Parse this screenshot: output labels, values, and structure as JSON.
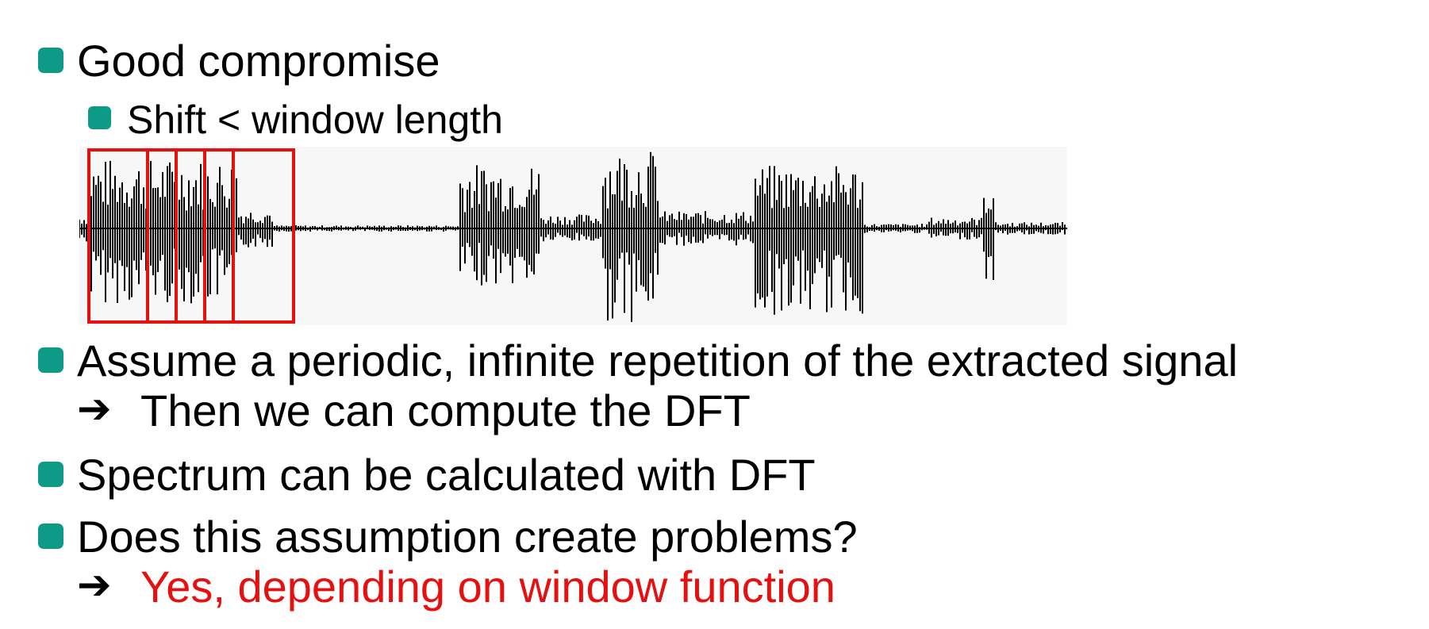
{
  "slide": {
    "bullets": [
      {
        "text": "Good compromise",
        "sub": [
          {
            "text": "Shift < window length"
          }
        ]
      },
      {
        "text": "Assume a periodic, infinite repetition of the extracted signal",
        "continuation": "Then we can compute the DFT"
      },
      {
        "text": "Spectrum can be calculated with DFT"
      },
      {
        "text": "Does this assumption create problems?",
        "continuation": "Yes, depending on window function",
        "continuation_color": "#e61010"
      }
    ],
    "arrow_icon": "heavy-right-arrow-icon",
    "accent_color": "#0d9a86"
  },
  "figure": {
    "type": "waveform-with-overlapping-windows",
    "window_color": "#e61010",
    "window_count": 5
  }
}
